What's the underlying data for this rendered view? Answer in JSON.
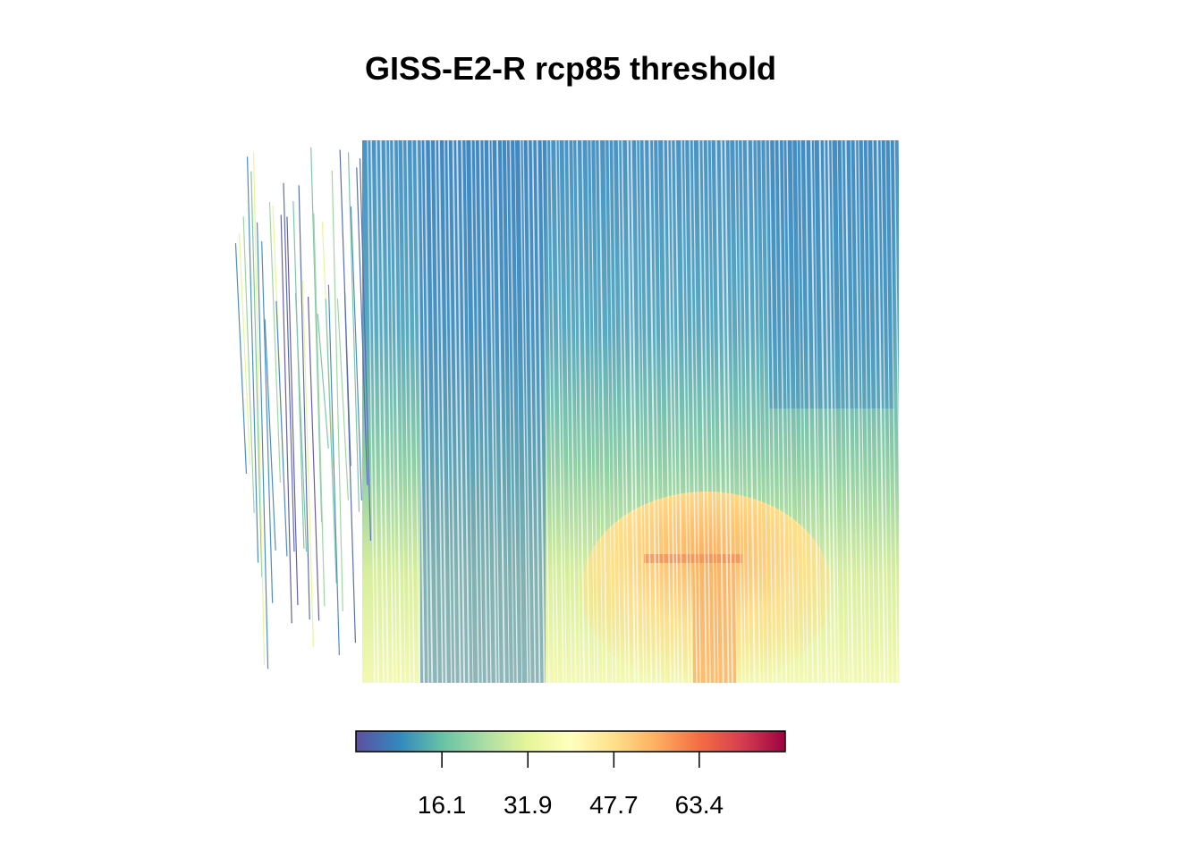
{
  "title": "GISS-E2-R rcp85 threshold",
  "colorbar": {
    "palette": [
      "#5e4fa2",
      "#3288bd",
      "#66c2a5",
      "#abdda4",
      "#e6f598",
      "#ffffbf",
      "#fee08b",
      "#fdae61",
      "#f46d43",
      "#d53e4f",
      "#9e0142"
    ],
    "range": [
      0.3,
      79.2
    ],
    "ticks": [
      {
        "value": 16.1,
        "label": "16.1"
      },
      {
        "value": 31.9,
        "label": "31.9"
      },
      {
        "value": 47.7,
        "label": "47.7"
      },
      {
        "value": 63.4,
        "label": "63.4"
      }
    ]
  }
}
